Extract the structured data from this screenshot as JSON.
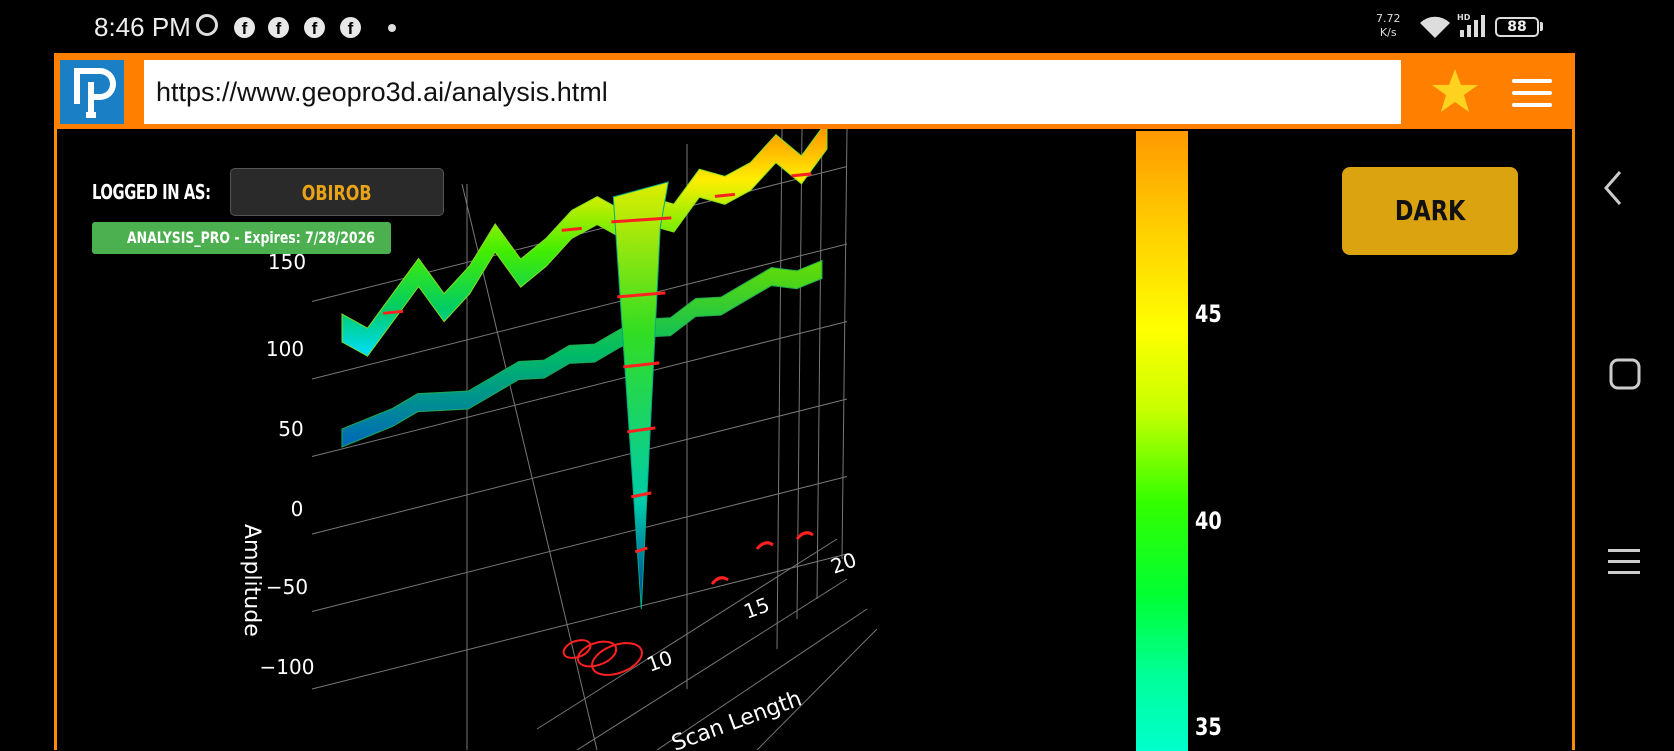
{
  "status_bar": {
    "time": "8:46 PM",
    "fb_glyph": "f",
    "net_speed_value": "7.72",
    "net_speed_unit": "K/s",
    "network_badge": "HD",
    "battery": "88",
    "icons": [
      "alarm-icon",
      "facebook-icon",
      "facebook-icon",
      "facebook-icon",
      "facebook-icon",
      "dot-icon",
      "wifi-icon",
      "signal-icon",
      "battery-icon"
    ]
  },
  "browser": {
    "url": "https://www.geopro3d.ai/analysis.html",
    "toolbar_color": "#ff7f00",
    "logo_color": "#1a7fc4",
    "icons": [
      "geopro-logo-icon",
      "star-icon",
      "hamburger-menu-icon"
    ]
  },
  "account": {
    "logged_in_label": "LOGGED IN AS:",
    "username": "OBIROB",
    "subscription": "ANALYSIS_PRO - Expires: 7/28/2026"
  },
  "theme_button": {
    "label": "DARK",
    "color": "#dba30f"
  },
  "chart_data": {
    "type": "surface",
    "zlabel": "Amplitude",
    "xlabel": "Scan Length",
    "z_ticks": [
      "150",
      "100",
      "50",
      "0",
      "−50",
      "−100"
    ],
    "x_ticks": [
      "10",
      "15",
      "20"
    ],
    "colorbar_ticks": [
      "45",
      "40",
      "35"
    ],
    "colorscale": [
      "#ff9900",
      "#ffff00",
      "#33ff00",
      "#00ff99",
      "#00ffcc"
    ],
    "grid": true,
    "surfaces": [
      {
        "name": "",
        "approx_values": [
          115,
          100,
          120,
          140,
          110,
          125,
          150,
          120,
          130,
          145,
          150,
          135,
          -100,
          130,
          150,
          140,
          145,
          160,
          140,
          160
        ]
      },
      {
        "name": "",
        "approx_values": [
          40,
          45,
          50,
          60,
          55,
          50,
          60,
          70,
          65,
          75,
          70,
          80,
          85,
          80,
          95,
          90,
          100,
          110,
          100,
          105
        ]
      }
    ],
    "colorbar_orientation": "vertical",
    "colorbar_placement": "right"
  },
  "nav_bar": {
    "icons": [
      "back-chevron-icon",
      "home-circle-icon",
      "recent-apps-icon"
    ]
  }
}
